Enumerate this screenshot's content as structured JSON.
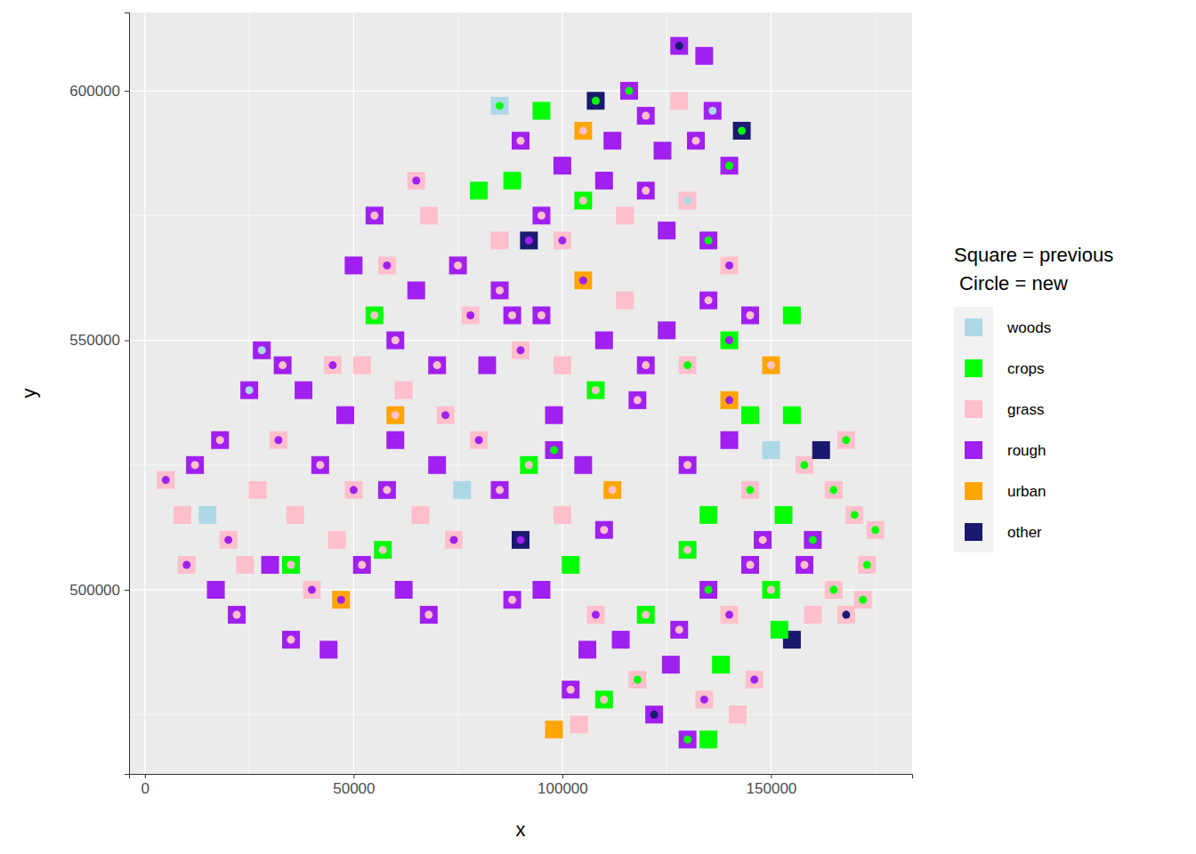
{
  "chart_data": {
    "type": "scatter",
    "x_label": "x",
    "y_label": "y",
    "xlim": [
      -3800,
      183800
    ],
    "ylim": [
      463100,
      615700
    ],
    "xticks": [
      0,
      50000,
      100000,
      150000
    ],
    "yticks": [
      500000,
      550000,
      600000
    ],
    "grid": true,
    "legend": "right",
    "legend_title": [
      "Square = previous",
      " Circle = new"
    ],
    "series": [
      {
        "name": "woods",
        "color": "#add8e6"
      },
      {
        "name": "crops",
        "color": "#00ff00"
      },
      {
        "name": "grass",
        "color": "#ffc0cb"
      },
      {
        "name": "rough",
        "color": "#a020f0"
      },
      {
        "name": "urban",
        "color": "#ffa500"
      },
      {
        "name": "other",
        "color": "#191970"
      }
    ],
    "points": [
      {
        "x": 5000,
        "y": 522000,
        "previous": "grass",
        "new": "rough"
      },
      {
        "x": 9000,
        "y": 515000,
        "previous": "grass",
        "new": "grass"
      },
      {
        "x": 12000,
        "y": 525000,
        "previous": "rough",
        "new": "grass"
      },
      {
        "x": 10000,
        "y": 505000,
        "previous": "grass",
        "new": "rough"
      },
      {
        "x": 15000,
        "y": 515000,
        "previous": "woods",
        "new": "woods"
      },
      {
        "x": 18000,
        "y": 530000,
        "previous": "rough",
        "new": "grass"
      },
      {
        "x": 20000,
        "y": 510000,
        "previous": "grass",
        "new": "rough"
      },
      {
        "x": 22000,
        "y": 495000,
        "previous": "rough",
        "new": "grass"
      },
      {
        "x": 25000,
        "y": 540000,
        "previous": "rough",
        "new": "woods"
      },
      {
        "x": 27000,
        "y": 520000,
        "previous": "grass",
        "new": "grass"
      },
      {
        "x": 30000,
        "y": 505000,
        "previous": "rough",
        "new": "rough"
      },
      {
        "x": 32000,
        "y": 530000,
        "previous": "grass",
        "new": "rough"
      },
      {
        "x": 35000,
        "y": 490000,
        "previous": "rough",
        "new": "grass"
      },
      {
        "x": 36000,
        "y": 515000,
        "previous": "grass",
        "new": "grass"
      },
      {
        "x": 38000,
        "y": 540000,
        "previous": "rough",
        "new": "rough"
      },
      {
        "x": 40000,
        "y": 500000,
        "previous": "grass",
        "new": "rough"
      },
      {
        "x": 42000,
        "y": 525000,
        "previous": "rough",
        "new": "grass"
      },
      {
        "x": 44000,
        "y": 488000,
        "previous": "rough",
        "new": "rough"
      },
      {
        "x": 46000,
        "y": 510000,
        "previous": "grass",
        "new": "grass"
      },
      {
        "x": 48000,
        "y": 535000,
        "previous": "rough",
        "new": "rough"
      },
      {
        "x": 50000,
        "y": 520000,
        "previous": "grass",
        "new": "rough"
      },
      {
        "x": 28000,
        "y": 548000,
        "previous": "rough",
        "new": "woods"
      },
      {
        "x": 33000,
        "y": 545000,
        "previous": "rough",
        "new": "grass"
      },
      {
        "x": 45000,
        "y": 545000,
        "previous": "grass",
        "new": "rough"
      },
      {
        "x": 24000,
        "y": 505000,
        "previous": "grass",
        "new": "grass"
      },
      {
        "x": 17000,
        "y": 500000,
        "previous": "rough",
        "new": "rough"
      },
      {
        "x": 47000,
        "y": 498000,
        "previous": "urban",
        "new": "rough"
      },
      {
        "x": 52000,
        "y": 505000,
        "previous": "rough",
        "new": "grass"
      },
      {
        "x": 35000,
        "y": 505000,
        "previous": "crops",
        "new": "grass"
      },
      {
        "x": 55000,
        "y": 575000,
        "previous": "rough",
        "new": "grass"
      },
      {
        "x": 58000,
        "y": 565000,
        "previous": "grass",
        "new": "rough"
      },
      {
        "x": 60000,
        "y": 550000,
        "previous": "rough",
        "new": "grass"
      },
      {
        "x": 62000,
        "y": 540000,
        "previous": "grass",
        "new": "grass"
      },
      {
        "x": 65000,
        "y": 560000,
        "previous": "rough",
        "new": "rough"
      },
      {
        "x": 68000,
        "y": 575000,
        "previous": "grass",
        "new": "grass"
      },
      {
        "x": 70000,
        "y": 545000,
        "previous": "rough",
        "new": "grass"
      },
      {
        "x": 72000,
        "y": 535000,
        "previous": "grass",
        "new": "rough"
      },
      {
        "x": 75000,
        "y": 565000,
        "previous": "rough",
        "new": "grass"
      },
      {
        "x": 78000,
        "y": 555000,
        "previous": "grass",
        "new": "rough"
      },
      {
        "x": 80000,
        "y": 580000,
        "previous": "crops",
        "new": "crops"
      },
      {
        "x": 82000,
        "y": 545000,
        "previous": "rough",
        "new": "rough"
      },
      {
        "x": 85000,
        "y": 570000,
        "previous": "grass",
        "new": "grass"
      },
      {
        "x": 88000,
        "y": 555000,
        "previous": "rough",
        "new": "grass"
      },
      {
        "x": 55000,
        "y": 555000,
        "previous": "crops",
        "new": "grass"
      },
      {
        "x": 60000,
        "y": 530000,
        "previous": "rough",
        "new": "rough"
      },
      {
        "x": 65000,
        "y": 582000,
        "previous": "grass",
        "new": "rough"
      },
      {
        "x": 50000,
        "y": 565000,
        "previous": "rough",
        "new": "rough"
      },
      {
        "x": 52000,
        "y": 545000,
        "previous": "grass",
        "new": "grass"
      },
      {
        "x": 58000,
        "y": 520000,
        "previous": "rough",
        "new": "grass"
      },
      {
        "x": 62000,
        "y": 500000,
        "previous": "rough",
        "new": "rough"
      },
      {
        "x": 66000,
        "y": 515000,
        "previous": "grass",
        "new": "grass"
      },
      {
        "x": 70000,
        "y": 525000,
        "previous": "rough",
        "new": "rough"
      },
      {
        "x": 74000,
        "y": 510000,
        "previous": "grass",
        "new": "rough"
      },
      {
        "x": 76000,
        "y": 520000,
        "previous": "woods",
        "new": "woods"
      },
      {
        "x": 60000,
        "y": 535000,
        "previous": "urban",
        "new": "grass"
      },
      {
        "x": 57000,
        "y": 508000,
        "previous": "crops",
        "new": "grass"
      },
      {
        "x": 68000,
        "y": 495000,
        "previous": "rough",
        "new": "grass"
      },
      {
        "x": 85000,
        "y": 597000,
        "previous": "woods",
        "new": "crops"
      },
      {
        "x": 90000,
        "y": 590000,
        "previous": "rough",
        "new": "grass"
      },
      {
        "x": 95000,
        "y": 596000,
        "previous": "crops",
        "new": "crops"
      },
      {
        "x": 100000,
        "y": 585000,
        "previous": "rough",
        "new": "rough"
      },
      {
        "x": 105000,
        "y": 592000,
        "previous": "urban",
        "new": "grass"
      },
      {
        "x": 108000,
        "y": 598000,
        "previous": "other",
        "new": "crops"
      },
      {
        "x": 112000,
        "y": 590000,
        "previous": "rough",
        "new": "rough"
      },
      {
        "x": 116000,
        "y": 600000,
        "previous": "rough",
        "new": "crops"
      },
      {
        "x": 120000,
        "y": 595000,
        "previous": "rough",
        "new": "grass"
      },
      {
        "x": 124000,
        "y": 588000,
        "previous": "rough",
        "new": "rough"
      },
      {
        "x": 128000,
        "y": 598000,
        "previous": "grass",
        "new": "grass"
      },
      {
        "x": 128000,
        "y": 609000,
        "previous": "rough",
        "new": "other"
      },
      {
        "x": 134000,
        "y": 607000,
        "previous": "rough",
        "new": "rough"
      },
      {
        "x": 132000,
        "y": 590000,
        "previous": "rough",
        "new": "grass"
      },
      {
        "x": 136000,
        "y": 596000,
        "previous": "rough",
        "new": "woods"
      },
      {
        "x": 140000,
        "y": 585000,
        "previous": "rough",
        "new": "crops"
      },
      {
        "x": 143000,
        "y": 592000,
        "previous": "other",
        "new": "crops"
      },
      {
        "x": 95000,
        "y": 575000,
        "previous": "rough",
        "new": "grass"
      },
      {
        "x": 100000,
        "y": 570000,
        "previous": "grass",
        "new": "rough"
      },
      {
        "x": 105000,
        "y": 578000,
        "previous": "crops",
        "new": "grass"
      },
      {
        "x": 110000,
        "y": 582000,
        "previous": "rough",
        "new": "rough"
      },
      {
        "x": 115000,
        "y": 575000,
        "previous": "grass",
        "new": "grass"
      },
      {
        "x": 120000,
        "y": 580000,
        "previous": "rough",
        "new": "grass"
      },
      {
        "x": 125000,
        "y": 572000,
        "previous": "rough",
        "new": "rough"
      },
      {
        "x": 130000,
        "y": 578000,
        "previous": "grass",
        "new": "woods"
      },
      {
        "x": 135000,
        "y": 570000,
        "previous": "rough",
        "new": "crops"
      },
      {
        "x": 140000,
        "y": 565000,
        "previous": "grass",
        "new": "rough"
      },
      {
        "x": 92000,
        "y": 570000,
        "previous": "other",
        "new": "rough"
      },
      {
        "x": 88000,
        "y": 582000,
        "previous": "crops",
        "new": "crops"
      },
      {
        "x": 85000,
        "y": 560000,
        "previous": "rough",
        "new": "grass"
      },
      {
        "x": 90000,
        "y": 548000,
        "previous": "grass",
        "new": "rough"
      },
      {
        "x": 95000,
        "y": 555000,
        "previous": "rough",
        "new": "grass"
      },
      {
        "x": 100000,
        "y": 545000,
        "previous": "grass",
        "new": "grass"
      },
      {
        "x": 105000,
        "y": 562000,
        "previous": "urban",
        "new": "rough"
      },
      {
        "x": 110000,
        "y": 550000,
        "previous": "rough",
        "new": "rough"
      },
      {
        "x": 115000,
        "y": 558000,
        "previous": "grass",
        "new": "grass"
      },
      {
        "x": 120000,
        "y": 545000,
        "previous": "rough",
        "new": "grass"
      },
      {
        "x": 125000,
        "y": 552000,
        "previous": "rough",
        "new": "rough"
      },
      {
        "x": 130000,
        "y": 545000,
        "previous": "grass",
        "new": "crops"
      },
      {
        "x": 135000,
        "y": 558000,
        "previous": "rough",
        "new": "grass"
      },
      {
        "x": 140000,
        "y": 550000,
        "previous": "crops",
        "new": "rough"
      },
      {
        "x": 145000,
        "y": 555000,
        "previous": "rough",
        "new": "grass"
      },
      {
        "x": 150000,
        "y": 545000,
        "previous": "urban",
        "new": "grass"
      },
      {
        "x": 155000,
        "y": 555000,
        "previous": "crops",
        "new": "crops"
      },
      {
        "x": 98000,
        "y": 535000,
        "previous": "rough",
        "new": "rough"
      },
      {
        "x": 108000,
        "y": 540000,
        "previous": "crops",
        "new": "grass"
      },
      {
        "x": 118000,
        "y": 538000,
        "previous": "rough",
        "new": "grass"
      },
      {
        "x": 140000,
        "y": 538000,
        "previous": "urban",
        "new": "rough"
      },
      {
        "x": 145000,
        "y": 535000,
        "previous": "crops",
        "new": "crops"
      },
      {
        "x": 80000,
        "y": 530000,
        "previous": "grass",
        "new": "rough"
      },
      {
        "x": 85000,
        "y": 520000,
        "previous": "rough",
        "new": "grass"
      },
      {
        "x": 90000,
        "y": 510000,
        "previous": "other",
        "new": "rough"
      },
      {
        "x": 92000,
        "y": 525000,
        "previous": "crops",
        "new": "grass"
      },
      {
        "x": 95000,
        "y": 500000,
        "previous": "rough",
        "new": "rough"
      },
      {
        "x": 100000,
        "y": 515000,
        "previous": "grass",
        "new": "grass"
      },
      {
        "x": 102000,
        "y": 505000,
        "previous": "crops",
        "new": "crops"
      },
      {
        "x": 105000,
        "y": 525000,
        "previous": "rough",
        "new": "rough"
      },
      {
        "x": 108000,
        "y": 495000,
        "previous": "grass",
        "new": "rough"
      },
      {
        "x": 110000,
        "y": 512000,
        "previous": "rough",
        "new": "grass"
      },
      {
        "x": 88000,
        "y": 498000,
        "previous": "rough",
        "new": "grass"
      },
      {
        "x": 98000,
        "y": 528000,
        "previous": "rough",
        "new": "crops"
      },
      {
        "x": 112000,
        "y": 520000,
        "previous": "urban",
        "new": "grass"
      },
      {
        "x": 130000,
        "y": 525000,
        "previous": "rough",
        "new": "grass"
      },
      {
        "x": 135000,
        "y": 515000,
        "previous": "crops",
        "new": "crops"
      },
      {
        "x": 140000,
        "y": 530000,
        "previous": "rough",
        "new": "rough"
      },
      {
        "x": 145000,
        "y": 520000,
        "previous": "grass",
        "new": "crops"
      },
      {
        "x": 148000,
        "y": 510000,
        "previous": "rough",
        "new": "grass"
      },
      {
        "x": 150000,
        "y": 528000,
        "previous": "woods",
        "new": "woods"
      },
      {
        "x": 153000,
        "y": 515000,
        "previous": "crops",
        "new": "crops"
      },
      {
        "x": 155000,
        "y": 535000,
        "previous": "crops",
        "new": "crops"
      },
      {
        "x": 158000,
        "y": 525000,
        "previous": "grass",
        "new": "crops"
      },
      {
        "x": 160000,
        "y": 510000,
        "previous": "rough",
        "new": "crops"
      },
      {
        "x": 162000,
        "y": 528000,
        "previous": "other",
        "new": "other"
      },
      {
        "x": 165000,
        "y": 520000,
        "previous": "grass",
        "new": "crops"
      },
      {
        "x": 168000,
        "y": 530000,
        "previous": "grass",
        "new": "crops"
      },
      {
        "x": 170000,
        "y": 515000,
        "previous": "grass",
        "new": "crops"
      },
      {
        "x": 173000,
        "y": 505000,
        "previous": "grass",
        "new": "crops"
      },
      {
        "x": 175000,
        "y": 512000,
        "previous": "grass",
        "new": "crops"
      },
      {
        "x": 165000,
        "y": 500000,
        "previous": "grass",
        "new": "crops"
      },
      {
        "x": 160000,
        "y": 495000,
        "previous": "grass",
        "new": "grass"
      },
      {
        "x": 155000,
        "y": 490000,
        "previous": "other",
        "new": "other"
      },
      {
        "x": 150000,
        "y": 500000,
        "previous": "crops",
        "new": "grass"
      },
      {
        "x": 145000,
        "y": 505000,
        "previous": "rough",
        "new": "grass"
      },
      {
        "x": 140000,
        "y": 495000,
        "previous": "grass",
        "new": "rough"
      },
      {
        "x": 135000,
        "y": 500000,
        "previous": "rough",
        "new": "crops"
      },
      {
        "x": 130000,
        "y": 508000,
        "previous": "crops",
        "new": "grass"
      },
      {
        "x": 168000,
        "y": 495000,
        "previous": "grass",
        "new": "other"
      },
      {
        "x": 172000,
        "y": 498000,
        "previous": "grass",
        "new": "crops"
      },
      {
        "x": 158000,
        "y": 505000,
        "previous": "rough",
        "new": "grass"
      },
      {
        "x": 152000,
        "y": 492000,
        "previous": "crops",
        "new": "crops"
      },
      {
        "x": 98000,
        "y": 472000,
        "previous": "urban",
        "new": "urban"
      },
      {
        "x": 102000,
        "y": 480000,
        "previous": "rough",
        "new": "grass"
      },
      {
        "x": 106000,
        "y": 488000,
        "previous": "rough",
        "new": "rough"
      },
      {
        "x": 110000,
        "y": 478000,
        "previous": "crops",
        "new": "grass"
      },
      {
        "x": 114000,
        "y": 490000,
        "previous": "rough",
        "new": "rough"
      },
      {
        "x": 118000,
        "y": 482000,
        "previous": "grass",
        "new": "crops"
      },
      {
        "x": 122000,
        "y": 475000,
        "previous": "rough",
        "new": "other"
      },
      {
        "x": 126000,
        "y": 485000,
        "previous": "rough",
        "new": "rough"
      },
      {
        "x": 130000,
        "y": 470000,
        "previous": "rough",
        "new": "crops"
      },
      {
        "x": 134000,
        "y": 478000,
        "previous": "grass",
        "new": "rough"
      },
      {
        "x": 138000,
        "y": 485000,
        "previous": "crops",
        "new": "crops"
      },
      {
        "x": 142000,
        "y": 475000,
        "previous": "grass",
        "new": "grass"
      },
      {
        "x": 135000,
        "y": 470000,
        "previous": "crops",
        "new": "crops"
      },
      {
        "x": 128000,
        "y": 492000,
        "previous": "rough",
        "new": "grass"
      },
      {
        "x": 146000,
        "y": 482000,
        "previous": "grass",
        "new": "rough"
      },
      {
        "x": 104000,
        "y": 473000,
        "previous": "grass",
        "new": "grass"
      },
      {
        "x": 120000,
        "y": 495000,
        "previous": "crops",
        "new": "grass"
      }
    ]
  }
}
